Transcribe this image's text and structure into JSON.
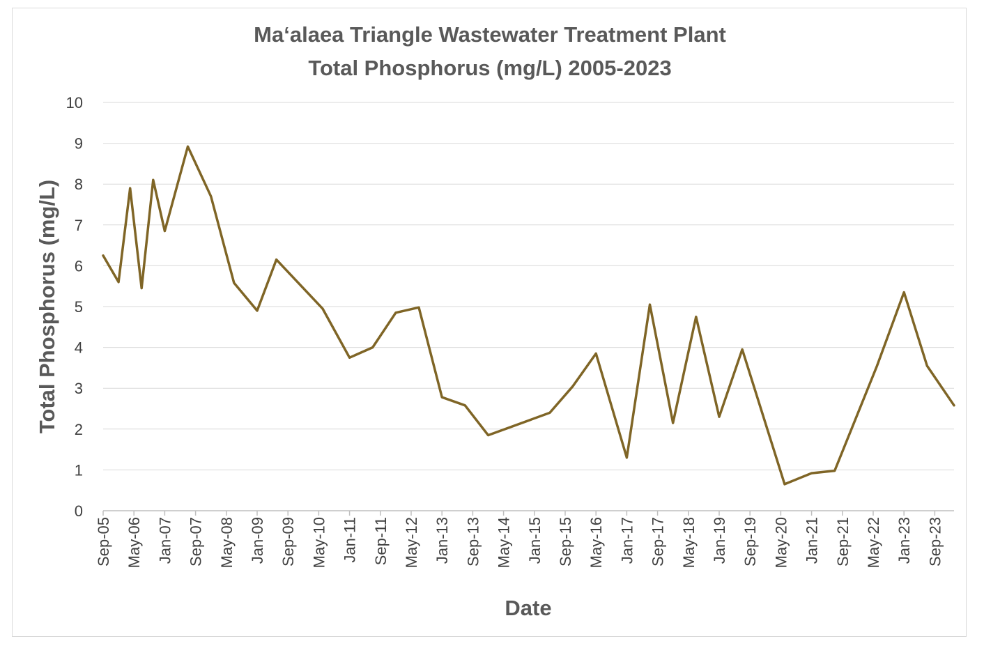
{
  "chart_data": {
    "type": "line",
    "title": "Ma‘alaea Triangle Wastewater Treatment Plant",
    "subtitle": "Total Phosphorus (mg/L) 2005-2023",
    "xlabel": "Date",
    "ylabel": "Total Phosphorus (mg/L)",
    "ylim": [
      0,
      10
    ],
    "yticks": [
      "0",
      "1",
      "2",
      "3",
      "4",
      "5",
      "6",
      "7",
      "8",
      "9",
      "10"
    ],
    "xlim": [
      "2005-09",
      "2024-02"
    ],
    "xticks": [
      "Sep-05",
      "May-06",
      "Jan-07",
      "Sep-07",
      "May-08",
      "Jan-09",
      "Sep-09",
      "May-10",
      "Jan-11",
      "Sep-11",
      "May-12",
      "Jan-13",
      "Sep-13",
      "May-14",
      "Jan-15",
      "Sep-15",
      "May-16",
      "Jan-17",
      "Sep-17",
      "May-18",
      "Jan-19",
      "Sep-19",
      "May-20",
      "Jan-21",
      "Sep-21",
      "May-22",
      "Jan-23",
      "Sep-23"
    ],
    "grid": true,
    "line_color": "#7f6526",
    "series": [
      {
        "name": "",
        "x": [
          "2005-09",
          "2006-01",
          "2006-04",
          "2006-07",
          "2006-10",
          "2007-01",
          "2007-07",
          "2008-01",
          "2008-07",
          "2009-01",
          "2009-06",
          "2010-06",
          "2011-01",
          "2011-07",
          "2012-01",
          "2012-07",
          "2013-01",
          "2013-07",
          "2014-01",
          "2015-05",
          "2015-11",
          "2016-05",
          "2017-01",
          "2017-07",
          "2018-01",
          "2018-07",
          "2019-01",
          "2019-07",
          "2020-06",
          "2021-01",
          "2021-07",
          "2022-06",
          "2023-01",
          "2023-07",
          "2024-02"
        ],
        "y": [
          6.25,
          5.6,
          7.9,
          5.45,
          8.1,
          6.85,
          8.92,
          7.7,
          5.58,
          4.9,
          6.15,
          4.95,
          3.75,
          4.0,
          4.85,
          4.98,
          2.78,
          2.58,
          1.85,
          2.4,
          3.05,
          3.85,
          1.3,
          5.05,
          2.15,
          4.75,
          2.3,
          3.95,
          0.65,
          0.92,
          0.98,
          3.55,
          5.35,
          3.55,
          2.58
        ]
      }
    ]
  }
}
